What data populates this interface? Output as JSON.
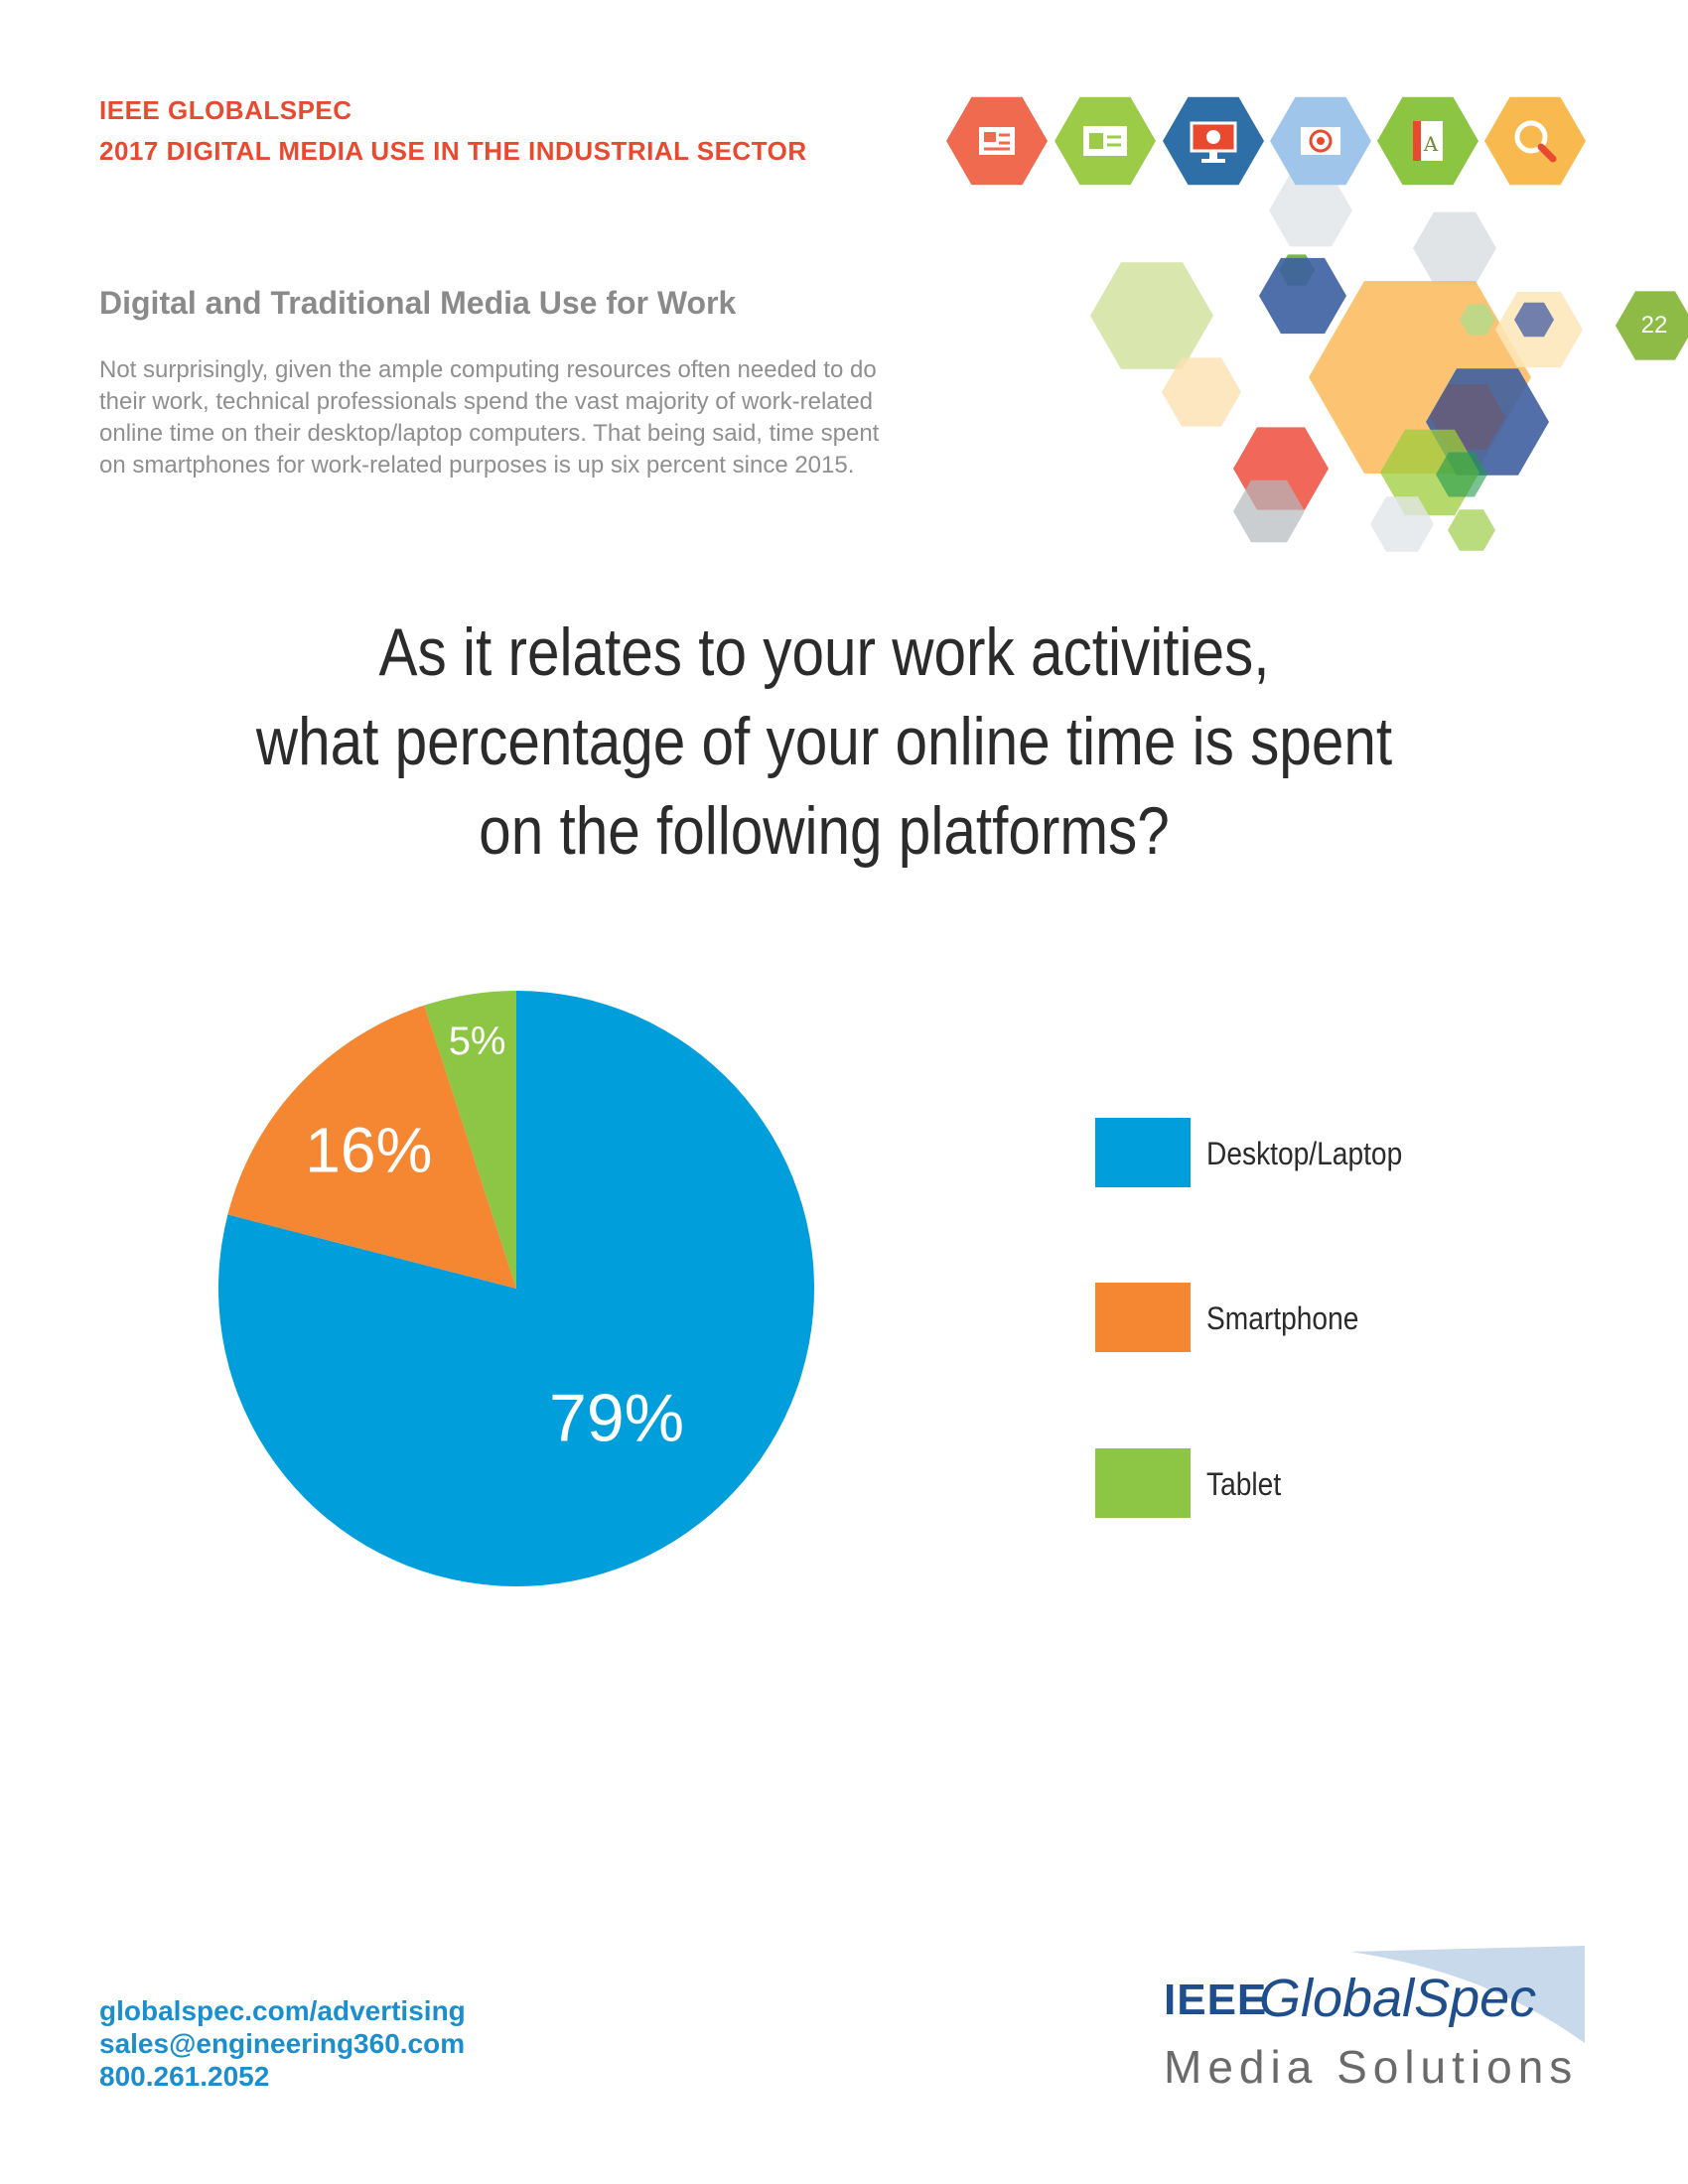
{
  "header": {
    "brand": "IEEE GLOBALSPEC",
    "report_title": "2017 DIGITAL MEDIA USE IN THE INDUSTRIAL SECTOR",
    "icons": [
      "newspaper-icon",
      "webpage-icon",
      "monitor-icon",
      "email-target-icon",
      "book-icon",
      "search-icon"
    ],
    "icon_colors": [
      "#ef6a4f",
      "#9ccc47",
      "#2e6fa7",
      "#9fc6ea",
      "#8cc542",
      "#f8b94f"
    ]
  },
  "page_number": "22",
  "section": {
    "title": "Digital and Traditional Media Use for Work",
    "intro_lines": [
      "Not surprisingly, given the ample computing resources often needed to do",
      "their work, technical professionals spend the vast majority of work-related",
      "online time on their desktop/laptop computers. That being said, time spent",
      "on smartphones for work-related purposes is up six percent since 2015."
    ]
  },
  "chart_data": {
    "type": "pie",
    "title_lines": [
      "As it relates to your work activities,",
      "what percentage of your online time is spent",
      "on the following platforms?"
    ],
    "categories": [
      "Desktop/Laptop",
      "Smartphone",
      "Tablet"
    ],
    "values": [
      79,
      16,
      5
    ],
    "labels": [
      "79%",
      "16%",
      "5%"
    ],
    "colors": [
      "#009fdc",
      "#f58632",
      "#8dc545"
    ],
    "legend": "right"
  },
  "footer": {
    "website": "globalspec.com/advertising",
    "email": "sales@engineering360.com",
    "phone": "800.261.2052",
    "logo_prefix": "IEEE",
    "logo_name": "GlobalSpec",
    "logo_tagline": "Media Solutions"
  }
}
